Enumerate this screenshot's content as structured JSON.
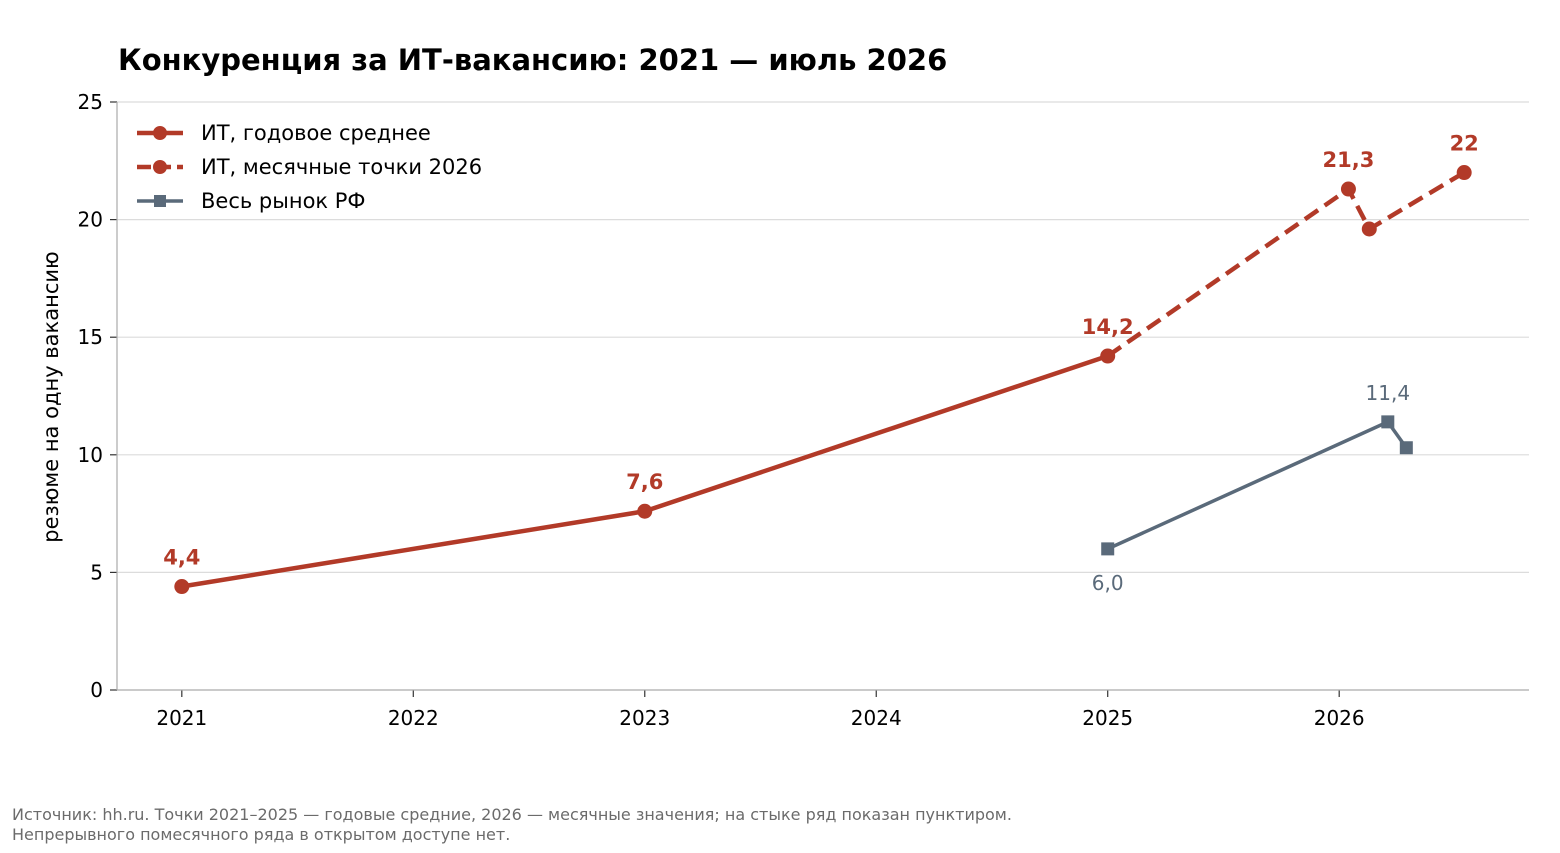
{
  "chart_data": {
    "type": "line",
    "title": "Конкуренция за ИТ-вакансию: 2021 — июль 2026",
    "xlabel": "",
    "ylabel": "резюме на одну вакансию",
    "xlim": [
      2020.72,
      2026.82
    ],
    "ylim": [
      0,
      25
    ],
    "x_ticks": [
      2021,
      2022,
      2023,
      2024,
      2025,
      2026
    ],
    "x_tick_labels": [
      "2021",
      "2022",
      "2023",
      "2024",
      "2025",
      "2026"
    ],
    "y_ticks": [
      0,
      5,
      10,
      15,
      20,
      25
    ],
    "y_tick_labels": [
      "0",
      "5",
      "10",
      "15",
      "20",
      "25"
    ],
    "grid": "horizontal",
    "legend_position": "top-left",
    "series": [
      {
        "name": "ИТ, годовое среднее",
        "style": "solid",
        "marker": "circle",
        "color": "#b23a28",
        "x": [
          2021,
          2023,
          2025
        ],
        "y": [
          4.4,
          7.6,
          14.2
        ],
        "labels": [
          "4,4",
          "7,6",
          "14,2"
        ]
      },
      {
        "name": "ИТ, месячные точки 2026",
        "style": "dashed",
        "marker": "circle",
        "color": "#b23a28",
        "x": [
          2025,
          2026.04,
          2026.13,
          2026.54
        ],
        "y": [
          14.2,
          21.3,
          19.6,
          22.0
        ],
        "labels": [
          "",
          "21,3",
          "",
          "22"
        ]
      },
      {
        "name": "Весь рынок РФ",
        "style": "solid",
        "marker": "square",
        "color": "#5a6a7a",
        "x": [
          2025,
          2026.21,
          2026.29
        ],
        "y": [
          6.0,
          11.4,
          10.3
        ],
        "labels": [
          "6,0",
          "11,4",
          ""
        ]
      }
    ]
  },
  "source": {
    "line1": "Источник: hh.ru. Точки 2021–2025 — годовые средние, 2026 — месячные значения; на стыке ряд показан пунктиром.",
    "line2": "Непрерывного помесячного ряда в открытом доступе нет."
  }
}
